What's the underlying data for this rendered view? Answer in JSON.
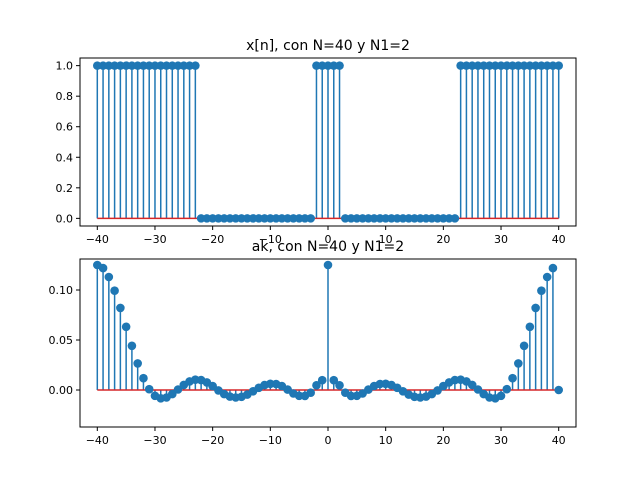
{
  "colors": {
    "stem": "#1f77b4",
    "baseline": "#d62728",
    "axes": "#000000",
    "background": "#ffffff"
  },
  "chart_data": [
    {
      "type": "stem",
      "title": "x[n], con N=40 y N1=2",
      "xlabel": "",
      "ylabel": "",
      "x": [
        -40,
        -39,
        -38,
        -37,
        -36,
        -35,
        -34,
        -33,
        -32,
        -31,
        -30,
        -29,
        -28,
        -27,
        -26,
        -25,
        -24,
        -23,
        -22,
        -21,
        -20,
        -19,
        -18,
        -17,
        -16,
        -15,
        -14,
        -13,
        -12,
        -11,
        -10,
        -9,
        -8,
        -7,
        -6,
        -5,
        -4,
        -3,
        -2,
        -1,
        0,
        1,
        2,
        3,
        4,
        5,
        6,
        7,
        8,
        9,
        10,
        11,
        12,
        13,
        14,
        15,
        16,
        17,
        18,
        19,
        20,
        21,
        22,
        23,
        24,
        25,
        26,
        27,
        28,
        29,
        30,
        31,
        32,
        33,
        34,
        35,
        36,
        37,
        38,
        39,
        40
      ],
      "y": [
        1,
        1,
        1,
        1,
        1,
        1,
        1,
        1,
        1,
        1,
        1,
        1,
        1,
        1,
        1,
        1,
        1,
        1,
        0,
        0,
        0,
        0,
        0,
        0,
        0,
        0,
        0,
        0,
        0,
        0,
        0,
        0,
        0,
        0,
        0,
        0,
        0,
        0,
        1,
        1,
        1,
        1,
        1,
        0,
        0,
        0,
        0,
        0,
        0,
        0,
        0,
        0,
        0,
        0,
        0,
        0,
        0,
        0,
        0,
        0,
        0,
        0,
        0,
        1,
        1,
        1,
        1,
        1,
        1,
        1,
        1,
        1,
        1,
        1,
        1,
        1,
        1,
        1,
        1,
        1,
        1
      ],
      "xlim": [
        -43,
        43
      ],
      "ylim": [
        -0.05,
        1.05
      ],
      "xticks": [
        -40,
        -30,
        -20,
        -10,
        0,
        10,
        20,
        30,
        40
      ],
      "yticks": [
        0.0,
        0.2,
        0.4,
        0.6,
        0.8,
        1.0
      ],
      "xtick_labels": [
        "−40",
        "−30",
        "−20",
        "−10",
        "0",
        "10",
        "20",
        "30",
        "40"
      ],
      "ytick_labels": [
        "0.0",
        "0.2",
        "0.4",
        "0.6",
        "0.8",
        "1.0"
      ],
      "grid": false,
      "baseline": 0
    },
    {
      "type": "stem",
      "title": "ak, con N=40 y N1=2",
      "xlabel": "",
      "ylabel": "",
      "x": [
        -40,
        -39,
        -38,
        -37,
        -36,
        -35,
        -34,
        -33,
        -32,
        -31,
        -30,
        -29,
        -28,
        -27,
        -26,
        -25,
        -24,
        -23,
        -22,
        -21,
        -20,
        -19,
        -18,
        -17,
        -16,
        -15,
        -14,
        -13,
        -12,
        -11,
        -10,
        -9,
        -8,
        -7,
        -6,
        -5,
        -4,
        -3,
        -2,
        -1,
        0,
        1,
        2,
        3,
        4,
        5,
        6,
        7,
        8,
        9,
        10,
        11,
        12,
        13,
        14,
        15,
        16,
        17,
        18,
        19,
        20,
        21,
        22,
        23,
        24,
        25,
        26,
        27,
        28,
        29,
        30,
        31,
        32,
        33,
        34,
        35,
        36,
        37,
        38,
        39,
        40
      ],
      "y": [
        0.125,
        0.1219,
        0.113,
        0.0993,
        0.0821,
        0.0632,
        0.0442,
        0.0266,
        0.0118,
        0.0008,
        -0.0058,
        -0.0083,
        -0.0075,
        -0.0041,
        0.0005,
        0.0051,
        0.0086,
        0.0103,
        0.0099,
        0.0076,
        0.0039,
        -0.0004,
        -0.0041,
        -0.0066,
        -0.0075,
        -0.0068,
        -0.0046,
        -0.0013,
        0.0022,
        0.0049,
        0.0062,
        0.006,
        0.004,
        0.0004,
        -0.0035,
        -0.0058,
        -0.0059,
        -0.0027,
        0.0047,
        0.0098,
        0.125,
        0.0098,
        0.0047,
        -0.0027,
        -0.0059,
        -0.0058,
        -0.0035,
        0.0004,
        0.004,
        0.006,
        0.0062,
        0.0049,
        0.0022,
        -0.0013,
        -0.0046,
        -0.0068,
        -0.0075,
        -0.0066,
        -0.0041,
        -0.0004,
        0.0039,
        0.0076,
        0.0099,
        0.0103,
        0.0086,
        0.0051,
        0.0005,
        -0.0041,
        -0.0075,
        -0.0083,
        -0.0058,
        0.0008,
        0.0118,
        0.0266,
        0.0442,
        0.0632,
        0.0821,
        0.0993,
        0.113,
        0.1219,
        0.0
      ],
      "xlim": [
        -43,
        43
      ],
      "ylim": [
        -0.037,
        0.131
      ],
      "xticks": [
        -40,
        -30,
        -20,
        -10,
        0,
        10,
        20,
        30,
        40
      ],
      "yticks": [
        0.0,
        0.05,
        0.1
      ],
      "xtick_labels": [
        "−40",
        "−30",
        "−20",
        "−10",
        "0",
        "10",
        "20",
        "30",
        "40"
      ],
      "ytick_labels": [
        "0.00",
        "0.05",
        "0.10"
      ],
      "grid": false,
      "baseline": 0
    }
  ]
}
